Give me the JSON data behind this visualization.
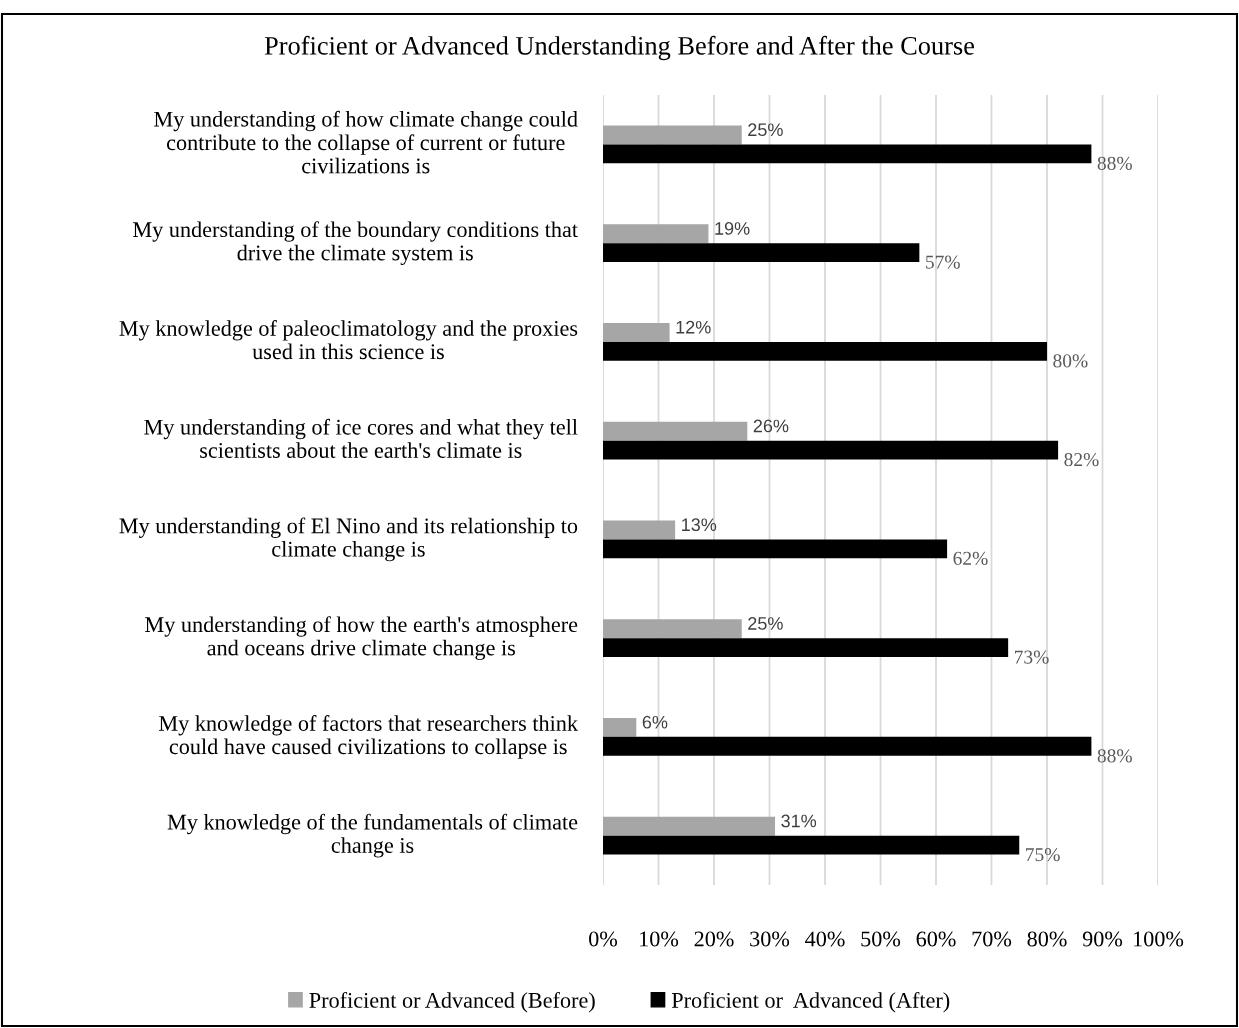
{
  "chart_data": {
    "type": "bar",
    "orientation": "horizontal",
    "title": "Proficient or Advanced Understanding Before and After the Course",
    "categories": [
      "My understanding of how climate change could contribute to the collapse of current or future civilizations is",
      "My understanding of the boundary conditions that drive the climate system is",
      "My knowledge of paleoclimatology and the proxies used in this science is",
      "My understanding of ice cores and what they tell scientists about the earth's climate is",
      "My understanding of El Nino and its relationship to climate change is",
      "My understanding of how the earth's atmosphere and oceans drive climate change is",
      "My knowledge of factors that researchers think could have caused civilizations to collapse is",
      "My knowledge of the fundamentals of climate change is"
    ],
    "series": [
      {
        "name": "Proficient or Advanced (Before)",
        "color": "#a6a6a6",
        "values": [
          25,
          19,
          12,
          26,
          13,
          25,
          6,
          31
        ],
        "value_labels": [
          "25%",
          "19%",
          "12%",
          "26%",
          "13%",
          "25%",
          "6%",
          "31%"
        ]
      },
      {
        "name": "Proficient or  Advanced (After)",
        "color": "#000000",
        "values": [
          88,
          57,
          80,
          82,
          62,
          73,
          88,
          75
        ],
        "value_labels": [
          "88%",
          "57%",
          "80%",
          "82%",
          "62%",
          "73%",
          "88%",
          "75%"
        ]
      }
    ],
    "xlim": [
      0,
      100
    ],
    "xticks": [
      {
        "value": 0,
        "label": "0%"
      },
      {
        "value": 10,
        "label": "10%"
      },
      {
        "value": 20,
        "label": "20%"
      },
      {
        "value": 30,
        "label": "30%"
      },
      {
        "value": 40,
        "label": "40%"
      },
      {
        "value": 50,
        "label": "50%"
      },
      {
        "value": 60,
        "label": "60%"
      },
      {
        "value": 70,
        "label": "70%"
      },
      {
        "value": 80,
        "label": "80%"
      },
      {
        "value": 90,
        "label": "90%"
      },
      {
        "value": 100,
        "label": "100%"
      }
    ],
    "grid": "x",
    "legend": "bottom"
  }
}
